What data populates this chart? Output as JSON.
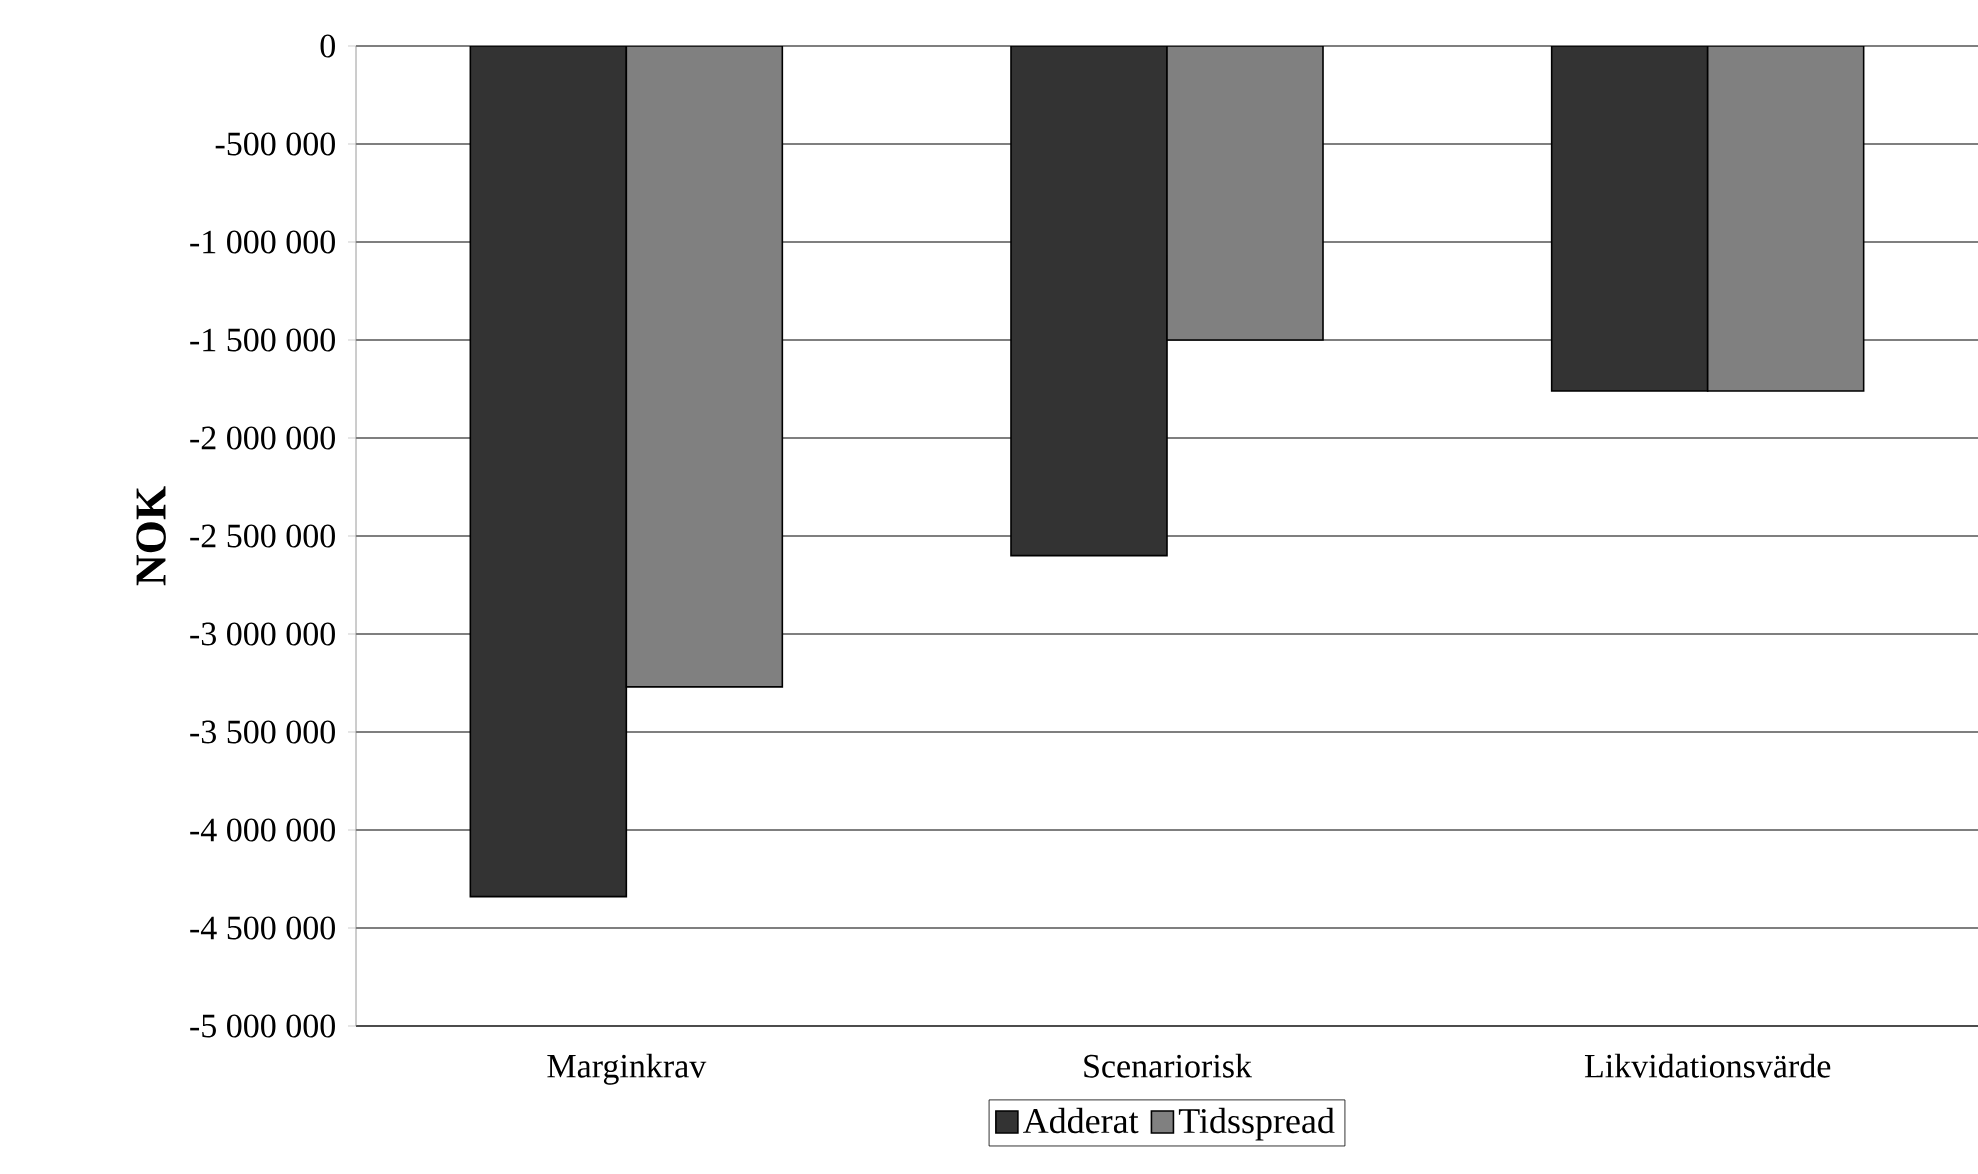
{
  "chart_data": {
    "type": "bar",
    "ylabel": "NOK",
    "categories": [
      "Marginkrav",
      "Scenariorisk",
      "Likvidationsvärde"
    ],
    "series": [
      {
        "name": "Adderat",
        "color": "#333333",
        "values": [
          -4340000,
          -2600000,
          -1760000
        ]
      },
      {
        "name": "Tidsspread",
        "color": "#808080",
        "values": [
          -3270000,
          -1500000,
          -1760000
        ]
      }
    ],
    "ylim": [
      -5000000,
      0
    ],
    "yticks": [
      {
        "value": -5000000,
        "label": "-5 000 000"
      },
      {
        "value": -4500000,
        "label": "-4 500 000"
      },
      {
        "value": -4000000,
        "label": "-4 000 000"
      },
      {
        "value": -3500000,
        "label": "-3 500 000"
      },
      {
        "value": -3000000,
        "label": "-3 000 000"
      },
      {
        "value": -2500000,
        "label": "-2 500 000"
      },
      {
        "value": -2000000,
        "label": "-2 000 000"
      },
      {
        "value": -1500000,
        "label": "-1 500 000"
      },
      {
        "value": -1000000,
        "label": "-1 000 000"
      },
      {
        "value": -500000,
        "label": "-500 000"
      },
      {
        "value": 0,
        "label": "0"
      }
    ],
    "grid": "y",
    "legend": "bottom"
  }
}
